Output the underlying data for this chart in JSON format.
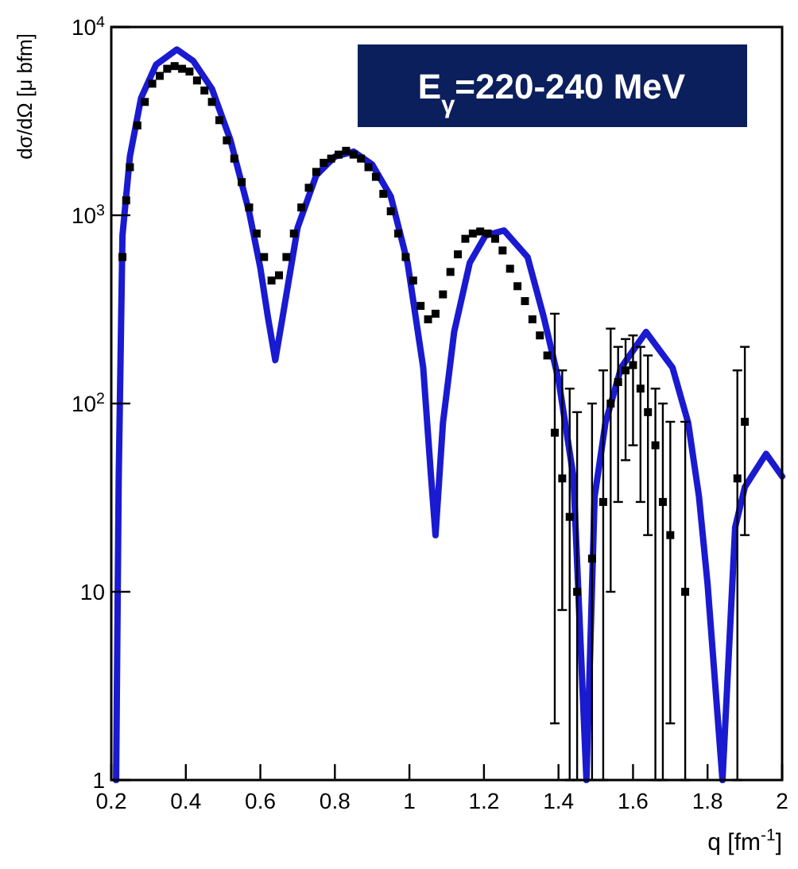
{
  "chart_data": {
    "type": "scatter",
    "xlabel": "q [fm$^{-1}$]",
    "ylabel": "dσ/dΩ [μ bfm]",
    "annotations": [
      "E$_{γ}$=220-240 MeV"
    ],
    "xlim": [
      0.2,
      2
    ],
    "xticks": [
      0.2,
      0.4,
      0.6,
      0.8,
      1,
      1.2,
      1.4,
      1.6,
      1.8,
      2
    ],
    "ylim": [
      1,
      10000
    ],
    "log": true,
    "yticks": [
      1,
      10,
      {
        "value": 100,
        "label": "10$^{2}$"
      },
      {
        "value": 1000,
        "label": "10$^{3}$"
      },
      {
        "value": 10000,
        "label": "10$^{4}$"
      }
    ],
    "grid": false,
    "series": [
      {
        "type": "line",
        "color": "#1a1ad0",
        "marker": "none",
        "line_style": "solid",
        "x": [
          0.213,
          0.22,
          0.23,
          0.25,
          0.28,
          0.32,
          0.376,
          0.42,
          0.47,
          0.52,
          0.57,
          0.6,
          0.62,
          0.64,
          0.66,
          0.7,
          0.75,
          0.8,
          0.85,
          0.9,
          0.95,
          0.995,
          1.037,
          1.058,
          1.07,
          1.09,
          1.12,
          1.162,
          1.204,
          1.254,
          1.317,
          1.36,
          1.4,
          1.44,
          1.475,
          1.497,
          1.526,
          1.568,
          1.635,
          1.706,
          1.748,
          1.777,
          1.8,
          1.84,
          1.874,
          1.9,
          1.957,
          2
        ],
        "values": [
          1,
          41,
          780,
          2050,
          4200,
          6300,
          7600,
          6600,
          4700,
          2500,
          1040,
          525,
          290,
          170,
          290,
          860,
          1630,
          2050,
          2180,
          1860,
          1260,
          560,
          155,
          41,
          20,
          79,
          240,
          560,
          780,
          830,
          600,
          290,
          134,
          41,
          1,
          32,
          79,
          155,
          240,
          155,
          79,
          32,
          11,
          1,
          22,
          36,
          54,
          41
        ]
      },
      {
        "color": "#000000",
        "marker": "square",
        "x": [
          0.23,
          0.24,
          0.25,
          0.27,
          0.29,
          0.31,
          0.33,
          0.35,
          0.37,
          0.39,
          0.41,
          0.43,
          0.45,
          0.47,
          0.49,
          0.51,
          0.53,
          0.55,
          0.57,
          0.59,
          0.61,
          0.63,
          0.65,
          0.67,
          0.69,
          0.71,
          0.73,
          0.75,
          0.77,
          0.79,
          0.81,
          0.83,
          0.85,
          0.87,
          0.89,
          0.91,
          0.93,
          0.95,
          0.97,
          0.99,
          1.01,
          1.03,
          1.05,
          1.07,
          1.09,
          1.11,
          1.13,
          1.15,
          1.17,
          1.19,
          1.21,
          1.23,
          1.25,
          1.27,
          1.29,
          1.31,
          1.33,
          1.35,
          1.37,
          1.39,
          1.41,
          1.43,
          1.45,
          1.49,
          1.52,
          1.54,
          1.56,
          1.58,
          1.6,
          1.62,
          1.64,
          1.66,
          1.68,
          1.7,
          1.74,
          1.88,
          1.9
        ],
        "values": [
          600,
          1200,
          1800,
          3000,
          4000,
          5000,
          5500,
          6000,
          6200,
          6000,
          5800,
          5200,
          4600,
          4000,
          3200,
          2500,
          2000,
          1500,
          1100,
          800,
          600,
          450,
          480,
          600,
          800,
          1100,
          1400,
          1700,
          1900,
          2000,
          2100,
          2200,
          2100,
          2000,
          1800,
          1600,
          1300,
          1050,
          800,
          600,
          450,
          330,
          280,
          300,
          380,
          500,
          620,
          750,
          800,
          820,
          800,
          750,
          650,
          520,
          420,
          350,
          280,
          230,
          180,
          70,
          40,
          25,
          10,
          15,
          30,
          100,
          130,
          150,
          160,
          120,
          90,
          60,
          30,
          20,
          10,
          40,
          80
        ],
        "errors": [
          null,
          null,
          null,
          null,
          null,
          null,
          null,
          null,
          null,
          null,
          null,
          null,
          null,
          null,
          null,
          null,
          null,
          null,
          null,
          null,
          null,
          null,
          null,
          null,
          null,
          null,
          null,
          null,
          null,
          null,
          null,
          null,
          null,
          null,
          null,
          null,
          null,
          null,
          null,
          null,
          null,
          null,
          null,
          null,
          null,
          null,
          null,
          null,
          null,
          null,
          null,
          null,
          null,
          null,
          null,
          null,
          null,
          null,
          null,
          [
            2,
            300
          ],
          [
            8,
            150
          ],
          [
            1,
            120
          ],
          [
            1,
            90
          ],
          [
            1,
            100
          ],
          [
            1,
            150
          ],
          [
            10,
            250
          ],
          [
            30,
            200
          ],
          [
            50,
            220
          ],
          [
            60,
            230
          ],
          [
            30,
            200
          ],
          [
            20,
            180
          ],
          [
            1,
            120
          ],
          [
            1,
            100
          ],
          [
            2,
            80
          ],
          [
            1,
            80
          ],
          [
            1,
            150
          ],
          [
            20,
            200
          ]
        ]
      }
    ]
  }
}
